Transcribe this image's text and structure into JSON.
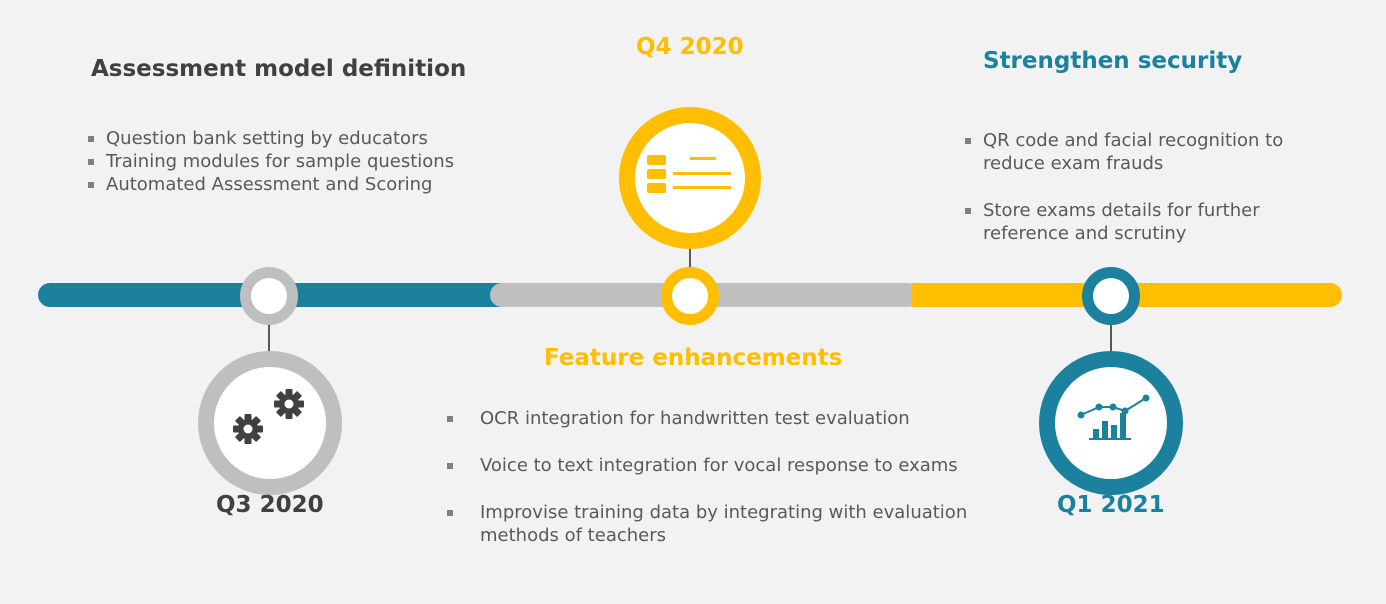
{
  "colors": {
    "background": "#f2f2f2",
    "teal": "#1c819e",
    "gold": "#ffbe00",
    "gray": "#bfbfbf",
    "text_dark": "#404040",
    "text_body": "#595959"
  },
  "milestones": [
    {
      "quarter": "Q3 2020",
      "heading": "Assessment model definition",
      "icon": "gears-icon",
      "bullets": [
        "Question bank setting by educators",
        "Training modules for sample questions",
        "Automated Assessment and Scoring"
      ]
    },
    {
      "quarter": "Q4 2020",
      "heading": "Feature enhancements",
      "icon": "list-icon",
      "bullets": [
        "OCR integration for handwritten test evaluation",
        "Voice to text integration for vocal response to exams",
        "Improvise training data by integrating with evaluation methods of teachers"
      ]
    },
    {
      "quarter": "Q1 2021",
      "heading": "Strengthen security",
      "icon": "growth-chart-icon",
      "bullets": [
        "QR code and facial recognition to reduce exam frauds",
        "Store exams details for further reference and scrutiny"
      ]
    }
  ]
}
